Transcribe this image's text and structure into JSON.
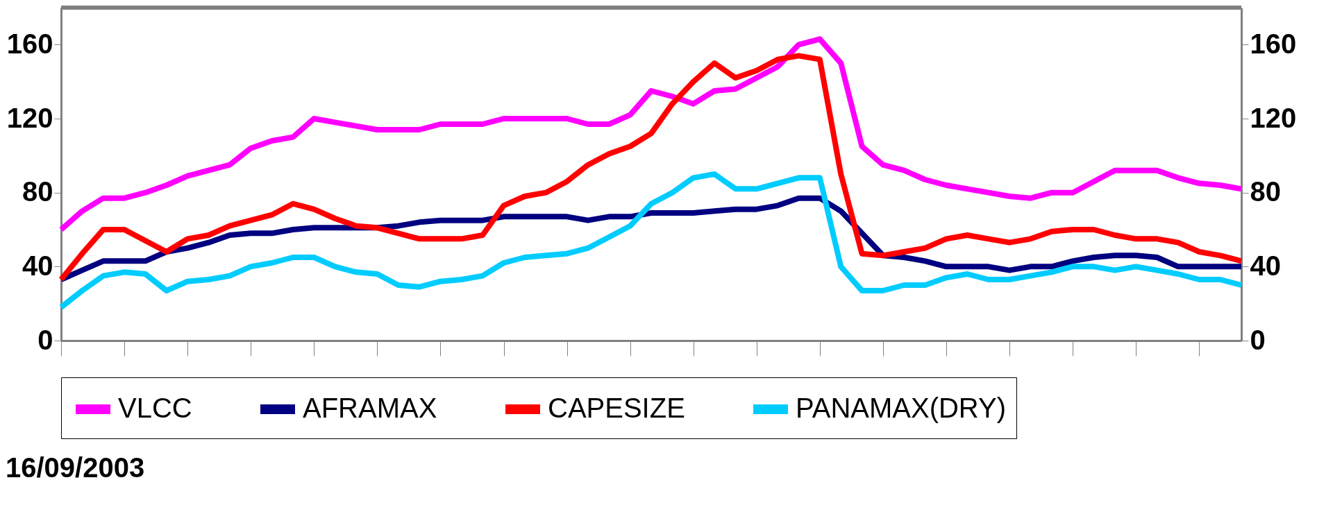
{
  "chart_data": {
    "type": "line",
    "categories": [
      null,
      null,
      null,
      null,
      null,
      null,
      null,
      null,
      null,
      null,
      null,
      null,
      null,
      null,
      null,
      null,
      null,
      null,
      null,
      null,
      null,
      null,
      null,
      null,
      null,
      null,
      null,
      null,
      null,
      null,
      null,
      null,
      null,
      null,
      null,
      null,
      null,
      null,
      null,
      null,
      null,
      null,
      null,
      null,
      null,
      null,
      null,
      null,
      null,
      null,
      null,
      null,
      null,
      null,
      null,
      null,
      null
    ],
    "series": [
      {
        "name": "VLCC",
        "color": "#ff00ff",
        "values": [
          60,
          70,
          77,
          77,
          80,
          84,
          89,
          92,
          95,
          104,
          108,
          110,
          120,
          118,
          116,
          114,
          114,
          114,
          117,
          117,
          117,
          120,
          120,
          120,
          120,
          117,
          117,
          122,
          135,
          132,
          128,
          135,
          136,
          142,
          148,
          160,
          163,
          150,
          105,
          95,
          92,
          87,
          84,
          82,
          80,
          78,
          77,
          80,
          80,
          86,
          92,
          92,
          92,
          88,
          85,
          84,
          82
        ]
      },
      {
        "name": "AFRAMAX",
        "color": "#000080",
        "values": [
          33,
          38,
          43,
          43,
          43,
          48,
          50,
          53,
          57,
          58,
          58,
          60,
          61,
          61,
          61,
          61,
          62,
          64,
          65,
          65,
          65,
          67,
          67,
          67,
          67,
          65,
          67,
          67,
          69,
          69,
          69,
          70,
          71,
          71,
          73,
          77,
          77,
          70,
          58,
          46,
          45,
          43,
          40,
          40,
          40,
          38,
          40,
          40,
          43,
          45,
          46,
          46,
          45,
          40,
          40,
          40,
          40
        ]
      },
      {
        "name": "CAPESIZE",
        "color": "#ff0000",
        "values": [
          33,
          47,
          60,
          60,
          54,
          48,
          55,
          57,
          62,
          65,
          68,
          74,
          71,
          66,
          62,
          61,
          58,
          55,
          55,
          55,
          57,
          73,
          78,
          80,
          86,
          95,
          101,
          105,
          112,
          128,
          140,
          150,
          142,
          146,
          152,
          154,
          152,
          90,
          47,
          46,
          48,
          50,
          55,
          57,
          55,
          53,
          55,
          59,
          60,
          60,
          57,
          55,
          55,
          53,
          48,
          46,
          43
        ]
      },
      {
        "name": "PANAMAX(DRY)",
        "color": "#00ccff",
        "values": [
          18,
          27,
          35,
          37,
          36,
          27,
          32,
          33,
          35,
          40,
          42,
          45,
          45,
          40,
          37,
          36,
          30,
          29,
          32,
          33,
          35,
          42,
          45,
          46,
          47,
          50,
          56,
          62,
          74,
          80,
          88,
          90,
          82,
          82,
          85,
          88,
          88,
          40,
          27,
          27,
          30,
          30,
          34,
          36,
          33,
          33,
          35,
          37,
          40,
          40,
          38,
          40,
          38,
          36,
          33,
          33,
          30
        ]
      }
    ],
    "ylim": [
      0,
      180
    ],
    "yticks": [
      0,
      40,
      80,
      120,
      160
    ],
    "y2lim": [
      0,
      180
    ],
    "y2ticks": [
      0,
      40,
      80,
      120,
      160
    ],
    "tick_labels": "y",
    "grid": false,
    "legend": "bottom",
    "marker": "none",
    "line_style": "solid",
    "annotations": [
      "16/09/2003"
    ]
  }
}
